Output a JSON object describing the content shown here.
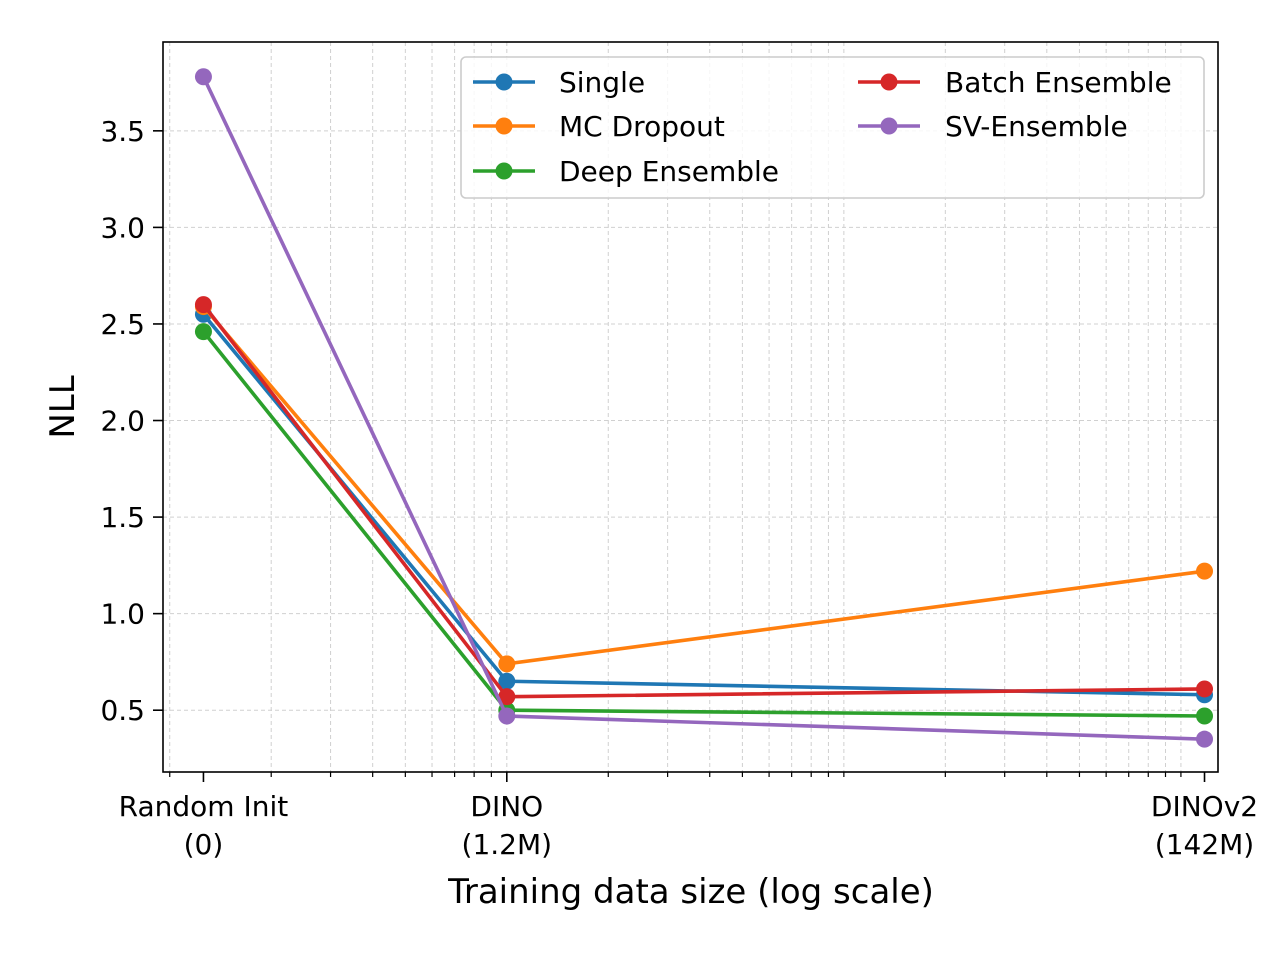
{
  "chart_data": {
    "type": "line",
    "title": "",
    "xlabel": "Training data size (log scale)",
    "ylabel": "NLL",
    "x_scale": "log",
    "grid": true,
    "legend_location": "top-right",
    "legend_columns": 2,
    "x_categories": [
      {
        "line1": "Random Init",
        "line2": "(0)"
      },
      {
        "line1": "DINO",
        "line2": "(1.2M)"
      },
      {
        "line1": "DINOv2",
        "line2": "(142M)"
      }
    ],
    "ylim": [
      0.18,
      3.96
    ],
    "y_ticks": [
      {
        "value": 0.5,
        "label": "0.5"
      },
      {
        "value": 1.0,
        "label": "1.0"
      },
      {
        "value": 1.5,
        "label": "1.5"
      },
      {
        "value": 2.0,
        "label": "2.0"
      },
      {
        "value": 2.5,
        "label": "2.5"
      },
      {
        "value": 3.0,
        "label": "3.0"
      },
      {
        "value": 3.5,
        "label": "3.5"
      }
    ],
    "series": [
      {
        "name": "Single",
        "color": "#1f77b4",
        "values": [
          2.55,
          0.65,
          0.58
        ]
      },
      {
        "name": "MC Dropout",
        "color": "#ff7f0e",
        "values": [
          2.59,
          0.74,
          1.22
        ]
      },
      {
        "name": "Deep Ensemble",
        "color": "#2ca02c",
        "values": [
          2.46,
          0.5,
          0.47
        ]
      },
      {
        "name": "Batch Ensemble",
        "color": "#d62728",
        "values": [
          2.6,
          0.57,
          0.61
        ]
      },
      {
        "name": "SV-Ensemble",
        "color": "#9467bd",
        "values": [
          3.78,
          0.47,
          0.35
        ]
      }
    ]
  }
}
